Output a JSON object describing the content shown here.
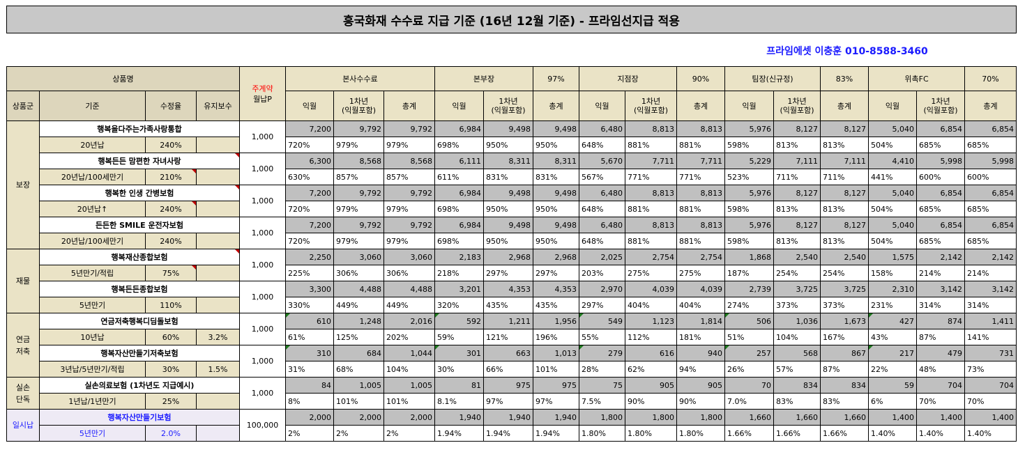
{
  "title": "흥국화재 수수료 지급 기준 (16년 12월 기준) - 프라임선지급 적용",
  "contact": "프라임에셋 이충훈 010-8588-3460",
  "header": {
    "product": "상품명",
    "premium_top": "주계약",
    "premium_bottom": "월납P",
    "groups": [
      {
        "name": "본사수수료",
        "pct": ""
      },
      {
        "name": "본부장",
        "pct": "97%"
      },
      {
        "name": "지점장",
        "pct": "90%"
      },
      {
        "name": "팀장(신규정)",
        "pct": "83%"
      },
      {
        "name": "위촉FC",
        "pct": "70%"
      }
    ],
    "sub_category": "상품군",
    "sub_basis": "기준",
    "sub_adjust": "수정율",
    "sub_maint": "유지보수",
    "sub_first": "익월",
    "sub_year": "1차년\n(익월포함)",
    "sub_total": "총계"
  },
  "categories": [
    {
      "label": "보장",
      "rows": 4
    },
    {
      "label": "재물",
      "rows": 2
    },
    {
      "label": "연금\n저축",
      "rows": 2
    },
    {
      "label": "실손\n단독",
      "rows": 1
    },
    {
      "label": "일시납",
      "rows": 1
    }
  ],
  "products": [
    {
      "name": "행복을다주는가족사랑통합",
      "basis": "20년납",
      "adjust": "240%",
      "maint": "",
      "premium": "1,000",
      "amounts": [
        "7,200",
        "9,792",
        "9,792",
        "6,984",
        "9,498",
        "9,498",
        "6,480",
        "8,813",
        "8,813",
        "5,976",
        "8,127",
        "8,127",
        "5,040",
        "6,854",
        "6,854"
      ],
      "rates": [
        "720%",
        "979%",
        "979%",
        "698%",
        "950%",
        "950%",
        "648%",
        "881%",
        "881%",
        "598%",
        "813%",
        "813%",
        "504%",
        "685%",
        "685%"
      ]
    },
    {
      "name": "행복든든 맘편한 자녀사랑",
      "basis": "20년납/100세만기",
      "adjust": "210%",
      "maint": "",
      "premium": "1,000",
      "amounts": [
        "6,300",
        "8,568",
        "8,568",
        "6,111",
        "8,311",
        "8,311",
        "5,670",
        "7,711",
        "7,711",
        "5,229",
        "7,111",
        "7,111",
        "4,410",
        "5,998",
        "5,998"
      ],
      "rates": [
        "630%",
        "857%",
        "857%",
        "611%",
        "831%",
        "831%",
        "567%",
        "771%",
        "771%",
        "523%",
        "711%",
        "711%",
        "441%",
        "600%",
        "600%"
      ]
    },
    {
      "name": "행복한 인생 간병보험",
      "basis": "20년납↑",
      "adjust": "240%",
      "maint": "",
      "premium": "1,000",
      "amounts": [
        "7,200",
        "9,792",
        "9,792",
        "6,984",
        "9,498",
        "9,498",
        "6,480",
        "8,813",
        "8,813",
        "5,976",
        "8,127",
        "8,127",
        "5,040",
        "6,854",
        "6,854"
      ],
      "rates": [
        "720%",
        "979%",
        "979%",
        "698%",
        "950%",
        "950%",
        "648%",
        "881%",
        "881%",
        "598%",
        "813%",
        "813%",
        "504%",
        "685%",
        "685%"
      ]
    },
    {
      "name": "든든한 SMILE 운전자보험",
      "basis": "20년납/100세만기",
      "adjust": "240%",
      "maint": "",
      "premium": "1,000",
      "amounts": [
        "7,200",
        "9,792",
        "9,792",
        "6,984",
        "9,498",
        "9,498",
        "6,480",
        "8,813",
        "8,813",
        "5,976",
        "8,127",
        "8,127",
        "5,040",
        "6,854",
        "6,854"
      ],
      "rates": [
        "720%",
        "979%",
        "979%",
        "698%",
        "950%",
        "950%",
        "648%",
        "881%",
        "881%",
        "598%",
        "813%",
        "813%",
        "504%",
        "685%",
        "685%"
      ]
    },
    {
      "name": "행복재산종합보험",
      "basis": "5년만기/적립",
      "adjust": "75%",
      "maint": "",
      "premium": "1,000",
      "amounts": [
        "2,250",
        "3,060",
        "3,060",
        "2,183",
        "2,968",
        "2,968",
        "2,025",
        "2,754",
        "2,754",
        "1,868",
        "2,540",
        "2,540",
        "1,575",
        "2,142",
        "2,142"
      ],
      "rates": [
        "225%",
        "306%",
        "306%",
        "218%",
        "297%",
        "297%",
        "203%",
        "275%",
        "275%",
        "187%",
        "254%",
        "254%",
        "158%",
        "214%",
        "214%"
      ]
    },
    {
      "name": "행복든든종합보험",
      "basis": "5년만기",
      "adjust": "110%",
      "maint": "",
      "premium": "1,000",
      "amounts": [
        "3,300",
        "4,488",
        "4,488",
        "3,201",
        "4,353",
        "4,353",
        "2,970",
        "4,039",
        "4,039",
        "2,739",
        "3,725",
        "3,725",
        "2,310",
        "3,142",
        "3,142"
      ],
      "rates": [
        "330%",
        "449%",
        "449%",
        "320%",
        "435%",
        "435%",
        "297%",
        "404%",
        "404%",
        "274%",
        "373%",
        "373%",
        "231%",
        "314%",
        "314%"
      ]
    },
    {
      "name": "연금저축행복디딤돌보험",
      "basis": "10년납",
      "adjust": "60%",
      "maint": "3.2%",
      "premium": "1,000",
      "amounts": [
        "610",
        "1,248",
        "2,016",
        "592",
        "1,211",
        "1,956",
        "549",
        "1,123",
        "1,814",
        "506",
        "1,036",
        "1,673",
        "427",
        "874",
        "1,411"
      ],
      "rates": [
        "61%",
        "125%",
        "202%",
        "59%",
        "121%",
        "196%",
        "55%",
        "112%",
        "181%",
        "51%",
        "104%",
        "167%",
        "43%",
        "87%",
        "141%"
      ]
    },
    {
      "name": "행복자산만들기저축보험",
      "basis": "3년납/5년만기/적립",
      "adjust": "30%",
      "maint": "1.5%",
      "premium": "1,000",
      "amounts": [
        "310",
        "684",
        "1,044",
        "301",
        "663",
        "1,013",
        "279",
        "616",
        "940",
        "257",
        "568",
        "867",
        "217",
        "479",
        "731"
      ],
      "rates": [
        "31%",
        "68%",
        "104%",
        "30%",
        "66%",
        "101%",
        "28%",
        "62%",
        "94%",
        "26%",
        "57%",
        "87%",
        "22%",
        "48%",
        "73%"
      ]
    },
    {
      "name": "실손의료보험 (1차년도 지급예시)",
      "basis": "1년납/1년만기",
      "adjust": "25%",
      "maint": "",
      "premium": "1,000",
      "amounts": [
        "84",
        "1,005",
        "1,005",
        "81",
        "975",
        "975",
        "75",
        "905",
        "905",
        "70",
        "834",
        "834",
        "59",
        "704",
        "704"
      ],
      "rates": [
        "8%",
        "101%",
        "101%",
        "8.1%",
        "97%",
        "97%",
        "7.5%",
        "90%",
        "90%",
        "7.0%",
        "83%",
        "83%",
        "6%",
        "70%",
        "70%"
      ]
    },
    {
      "name": "행복자산만들기보험",
      "basis": "5년만기",
      "adjust": "2.0%",
      "maint": "",
      "premium": "100,000",
      "amounts": [
        "2,000",
        "2,000",
        "2,000",
        "1,940",
        "1,940",
        "1,940",
        "1,800",
        "1,800",
        "1,800",
        "1,660",
        "1,660",
        "1,660",
        "1,400",
        "1,400",
        "1,400"
      ],
      "rates": [
        "2%",
        "2%",
        "2%",
        "1.94%",
        "1.94%",
        "1.94%",
        "1.80%",
        "1.80%",
        "1.80%",
        "1.66%",
        "1.66%",
        "1.66%",
        "1.40%",
        "1.40%",
        "1.40%"
      ]
    }
  ]
}
